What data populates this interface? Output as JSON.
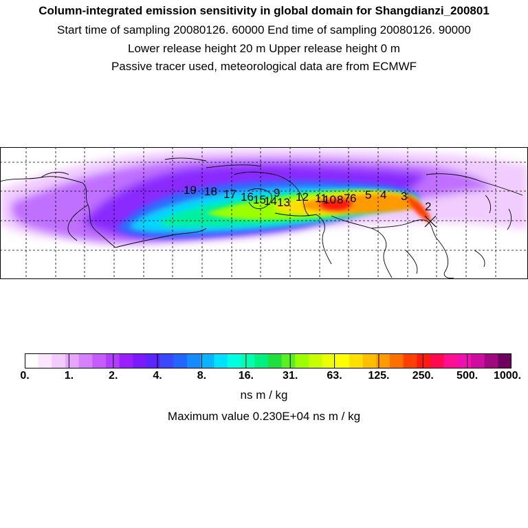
{
  "header": {
    "title": "Column-integrated emission sensitivity in global domain for Shangdianzi_200801",
    "line1": "Start time of sampling 20080126. 60000     End time of sampling 20080126. 90000",
    "line2": "Lower release height   20 m          Upper release height    0 m",
    "line3": "Passive tracer used, meteorological data are from ECMWF"
  },
  "map": {
    "trajectory_labels": [
      "19",
      "18",
      "17",
      "16",
      "15",
      "14",
      "13",
      "12",
      "11",
      "10",
      "9",
      "8",
      "7",
      "6",
      "5",
      "4",
      "3",
      "2"
    ],
    "release_marker": "release-site-cross"
  },
  "colorbar": {
    "colors": [
      "#ffffff",
      "#fbe6ff",
      "#f2ccff",
      "#e6a6ff",
      "#d580ff",
      "#c65cff",
      "#b23cff",
      "#9a1fff",
      "#7a1aff",
      "#5a26ff",
      "#3a48ff",
      "#2266ff",
      "#148cff",
      "#0ab4ff",
      "#00e0ff",
      "#00ffe0",
      "#00ffb0",
      "#00f080",
      "#20e040",
      "#58f020",
      "#9cff00",
      "#c8ff00",
      "#ecff00",
      "#ffff00",
      "#ffe000",
      "#ffbe00",
      "#ff9a00",
      "#ff7000",
      "#ff4000",
      "#ff1a10",
      "#ff0a50",
      "#ff1090",
      "#f010b0",
      "#d00ca0",
      "#a00880",
      "#700060"
    ],
    "tick_labels": [
      "0.",
      "1.",
      "2.",
      "4.",
      "8.",
      "16.",
      "31.",
      "63.",
      "125.",
      "250.",
      "500.",
      "1000."
    ],
    "units": "ns m / kg"
  },
  "footer": {
    "max_value": "Maximum value  0.230E+04 ns m / kg"
  }
}
